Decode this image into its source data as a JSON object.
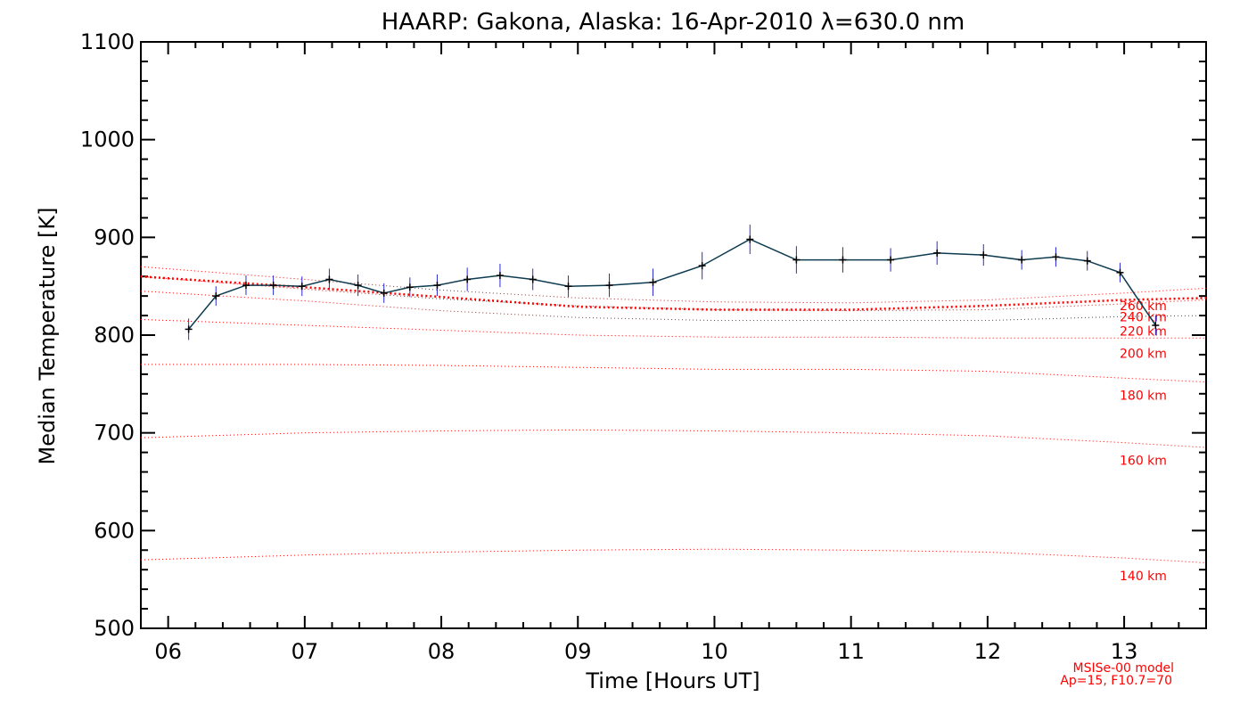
{
  "chart_data": {
    "type": "line",
    "title": "HAARP: Gakona,  Alaska: 16-Apr-2010 λ=630.0 nm",
    "xlabel": "Time [Hours UT]",
    "ylabel": "Median Temperature [K]",
    "xlim": [
      5.8,
      13.6
    ],
    "ylim": [
      500,
      1100
    ],
    "x_ticks": [
      6,
      7,
      8,
      9,
      10,
      11,
      12,
      13
    ],
    "x_tick_labels": [
      "06",
      "07",
      "08",
      "09",
      "10",
      "11",
      "12",
      "13"
    ],
    "y_ticks": [
      500,
      600,
      700,
      800,
      900,
      1000,
      1100
    ],
    "y_tick_labels": [
      "500",
      "600",
      "700",
      "800",
      "900",
      "1000",
      "1100"
    ],
    "grid": false,
    "series": [
      {
        "kind": "measurement",
        "color": "#0d3b4f",
        "errorbar_color": "#2b2bd9",
        "x": [
          6.15,
          6.35,
          6.57,
          6.77,
          6.98,
          7.18,
          7.39,
          7.58,
          7.77,
          7.97,
          8.19,
          8.43,
          8.67,
          8.93,
          9.23,
          9.55,
          9.91,
          10.26,
          10.6,
          10.94,
          11.29,
          11.63,
          11.97,
          12.25,
          12.5,
          12.73,
          12.97,
          13.23
        ],
        "y": [
          806,
          840,
          851,
          851,
          850,
          857,
          851,
          843,
          849,
          851,
          857,
          861,
          857,
          850,
          851,
          854,
          871,
          898,
          877,
          877,
          877,
          884,
          882,
          877,
          880,
          876,
          864,
          810
        ],
        "err": [
          11,
          10,
          10,
          10,
          10,
          11,
          11,
          10,
          10,
          11,
          12,
          12,
          11,
          11,
          12,
          14,
          14,
          15,
          14,
          13,
          12,
          12,
          11,
          10,
          10,
          10,
          10,
          10
        ]
      }
    ],
    "model": {
      "name": "MSISe-00 model",
      "params": "Ap=15, F10.7=70",
      "color": "#ff0000",
      "x": [
        5.8,
        7.0,
        8.0,
        9.0,
        10.0,
        11.0,
        12.0,
        13.0,
        13.6
      ],
      "curves": [
        {
          "label": "140 km",
          "y": [
            570,
            575,
            578,
            580,
            581,
            580,
            578,
            572,
            567
          ]
        },
        {
          "label": "160 km",
          "y": [
            695,
            700,
            702,
            703,
            702,
            700,
            697,
            690,
            685
          ]
        },
        {
          "label": "180 km",
          "y": [
            770,
            770,
            769,
            767,
            765,
            765,
            763,
            756,
            752
          ]
        },
        {
          "label": "200 km",
          "y": [
            816,
            810,
            805,
            800,
            798,
            798,
            797,
            797,
            797
          ]
        },
        {
          "label": "220 km",
          "y": [
            845,
            835,
            825,
            818,
            815,
            815,
            815,
            819,
            820
          ]
        },
        {
          "label": "240 km",
          "y": [
            860,
            847,
            837,
            830,
            826,
            825,
            826,
            832,
            836
          ]
        },
        {
          "label": "260 km",
          "y": [
            870,
            857,
            846,
            838,
            834,
            833,
            836,
            843,
            848
          ]
        }
      ],
      "emphasized": {
        "y": [
          860,
          849,
          839,
          829,
          826,
          826,
          830,
          836,
          838
        ]
      }
    }
  }
}
